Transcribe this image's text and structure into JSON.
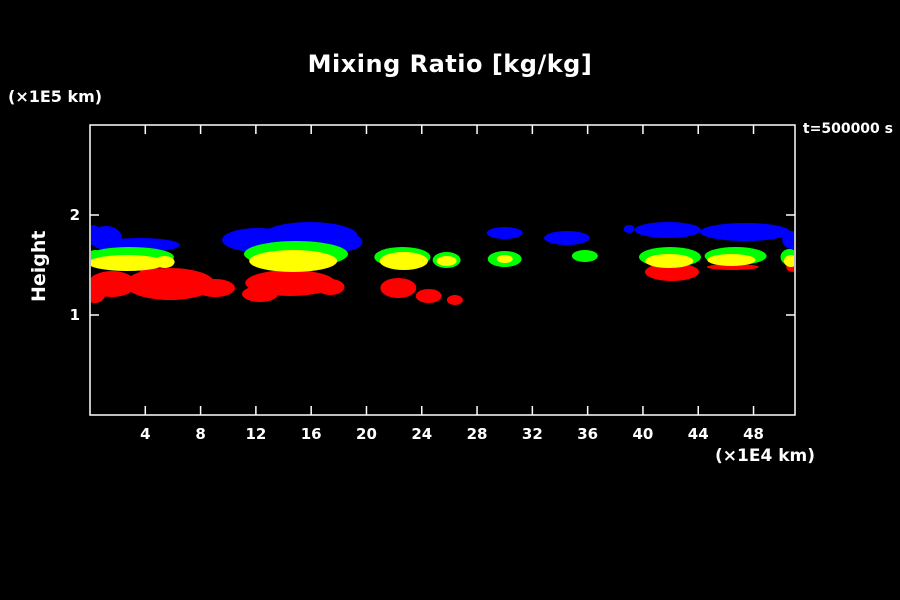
{
  "header": {
    "title": "Mixing Ratio [kg/kg]",
    "time_annotation": "t=500000 s"
  },
  "axes": {
    "y_label": "Height",
    "y_unit": "(×1E5 km)",
    "x_unit": "(×1E4 km)"
  },
  "colors": {
    "background": "#000000",
    "foreground": "#ffffff"
  },
  "chart_data": {
    "type": "heatmap",
    "subtype": "filled-contour-cloud-field",
    "title": "Mixing Ratio [kg/kg]",
    "xlabel": "(×1E4 km)",
    "ylabel": "Height (×1E5 km)",
    "xlim": [
      0,
      51
    ],
    "ylim": [
      0,
      2.9
    ],
    "x_ticks": [
      4,
      8,
      12,
      16,
      20,
      24,
      28,
      32,
      36,
      40,
      44,
      48
    ],
    "y_ticks": [
      1,
      2
    ],
    "grid": false,
    "legend": "none",
    "annotation": "t=500000 s",
    "palette": [
      "#0000ff",
      "#00ff00",
      "#ffff00",
      "#ff0000"
    ],
    "regions": [
      {
        "name": "cloud-band-blue",
        "color": "#0000ff",
        "ellipses": [
          [
            0.2,
            1.8,
            0.6,
            0.1
          ],
          [
            1.16,
            1.77,
            1.16,
            0.12
          ],
          [
            3.6,
            1.7,
            2.9,
            0.07
          ],
          [
            12.15,
            1.75,
            2.6,
            0.12
          ],
          [
            15.9,
            1.79,
            3.47,
            0.14
          ],
          [
            18.4,
            1.73,
            1.3,
            0.09
          ],
          [
            30.0,
            1.82,
            1.3,
            0.06
          ],
          [
            34.5,
            1.77,
            1.66,
            0.07
          ],
          [
            39.0,
            1.86,
            0.4,
            0.04
          ],
          [
            41.8,
            1.85,
            2.4,
            0.08
          ],
          [
            47.4,
            1.83,
            3.26,
            0.09
          ],
          [
            50.8,
            1.75,
            0.72,
            0.09
          ]
        ]
      },
      {
        "name": "cloud-band-red",
        "color": "#ff0000",
        "ellipses": [
          [
            1.59,
            1.31,
            1.74,
            0.13
          ],
          [
            0.36,
            1.2,
            0.72,
            0.08
          ],
          [
            5.79,
            1.31,
            3.26,
            0.16
          ],
          [
            9.04,
            1.27,
            1.45,
            0.09
          ],
          [
            4.34,
            1.43,
            0.72,
            0.06
          ],
          [
            14.5,
            1.32,
            3.26,
            0.13
          ],
          [
            12.3,
            1.21,
            1.3,
            0.08
          ],
          [
            17.4,
            1.28,
            1.01,
            0.08
          ],
          [
            22.3,
            1.27,
            1.3,
            0.1
          ],
          [
            24.5,
            1.19,
            0.94,
            0.07
          ],
          [
            26.4,
            1.15,
            0.58,
            0.05
          ],
          [
            42.1,
            1.43,
            1.95,
            0.09
          ],
          [
            46.5,
            1.48,
            1.88,
            0.03
          ],
          [
            50.8,
            1.48,
            0.43,
            0.05
          ]
        ]
      },
      {
        "name": "cloud-band-green",
        "color": "#00ff00",
        "ellipses": [
          [
            0.36,
            1.57,
            0.58,
            0.08
          ],
          [
            2.89,
            1.58,
            3.18,
            0.1
          ],
          [
            14.9,
            1.61,
            3.76,
            0.13
          ],
          [
            22.6,
            1.58,
            2.03,
            0.1
          ],
          [
            25.8,
            1.55,
            1.01,
            0.08
          ],
          [
            30.0,
            1.56,
            1.23,
            0.08
          ],
          [
            35.8,
            1.59,
            0.94,
            0.06
          ],
          [
            41.96,
            1.58,
            2.24,
            0.1
          ],
          [
            46.7,
            1.59,
            2.24,
            0.09
          ],
          [
            50.6,
            1.58,
            0.65,
            0.08
          ]
        ]
      },
      {
        "name": "cloud-band-yellow",
        "color": "#ffff00",
        "ellipses": [
          [
            2.68,
            1.52,
            2.82,
            0.08
          ],
          [
            5.4,
            1.53,
            0.72,
            0.06
          ],
          [
            14.7,
            1.54,
            3.18,
            0.11
          ],
          [
            22.7,
            1.54,
            1.74,
            0.09
          ],
          [
            25.8,
            1.54,
            0.72,
            0.05
          ],
          [
            30.0,
            1.56,
            0.58,
            0.04
          ],
          [
            41.9,
            1.54,
            1.74,
            0.07
          ],
          [
            46.4,
            1.55,
            1.74,
            0.06
          ],
          [
            50.7,
            1.54,
            0.51,
            0.06
          ]
        ]
      }
    ]
  }
}
